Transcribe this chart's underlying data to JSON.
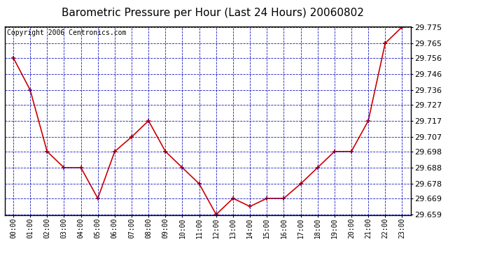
{
  "title": "Barometric Pressure per Hour (Last 24 Hours) 20060802",
  "copyright_text": "Copyright 2006 Centronics.com",
  "hours": [
    "00:00",
    "01:00",
    "02:00",
    "03:00",
    "04:00",
    "05:00",
    "06:00",
    "07:00",
    "08:00",
    "09:00",
    "10:00",
    "11:00",
    "12:00",
    "13:00",
    "14:00",
    "15:00",
    "16:00",
    "17:00",
    "18:00",
    "19:00",
    "20:00",
    "21:00",
    "22:00",
    "23:00"
  ],
  "values": [
    29.756,
    29.736,
    29.698,
    29.688,
    29.688,
    29.669,
    29.698,
    29.707,
    29.717,
    29.698,
    29.688,
    29.678,
    29.659,
    29.669,
    29.664,
    29.669,
    29.669,
    29.678,
    29.688,
    29.698,
    29.698,
    29.717,
    29.765,
    29.775
  ],
  "ylim_min": 29.659,
  "ylim_max": 29.775,
  "yticks": [
    29.659,
    29.669,
    29.678,
    29.688,
    29.698,
    29.707,
    29.717,
    29.727,
    29.736,
    29.746,
    29.756,
    29.765,
    29.775
  ],
  "line_color": "#cc0000",
  "marker_color": "#cc0000",
  "background_color": "#ffffff",
  "plot_bg_color": "#ffffff",
  "grid_color": "#0000bb",
  "title_color": "#000000",
  "title_fontsize": 11,
  "tick_label_color": "#000000",
  "copyright_color": "#000000",
  "copyright_fontsize": 7,
  "xtick_fontsize": 7,
  "ytick_fontsize": 8
}
